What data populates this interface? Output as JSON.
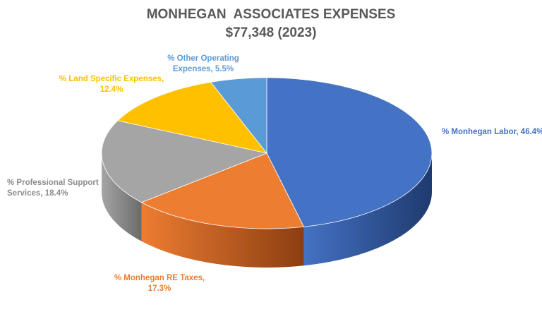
{
  "chart_data": {
    "type": "pie",
    "style": "3d",
    "title": "MONHEGAN  ASSOCIATES EXPENSES",
    "subtitle": "$77,348 (2023)",
    "slices": [
      {
        "label_lines": [
          "% Monhegan Labor, 46.4%"
        ],
        "value": 46.4,
        "color": "#4472C4",
        "side_color": "#1F3A6E"
      },
      {
        "label_lines": [
          "% Monhegan RE Taxes,",
          "17.3%"
        ],
        "value": 17.3,
        "color": "#ED7D31",
        "side_color": "#8C3E12"
      },
      {
        "label_lines": [
          "% Professional Support",
          "Services, 18.4%"
        ],
        "value": 18.4,
        "color": "#A5A5A5",
        "side_color": "#6B6B6B"
      },
      {
        "label_lines": [
          "% Land Specific  Expenses,",
          "12.4%"
        ],
        "value": 12.4,
        "color": "#FFC000",
        "side_color": "#A37A00"
      },
      {
        "label_lines": [
          "% Other Operating",
          "Expenses, 5.5%"
        ],
        "value": 5.5,
        "color": "#5B9BD5",
        "side_color": "#2F5F8A"
      }
    ],
    "legend": "none"
  }
}
